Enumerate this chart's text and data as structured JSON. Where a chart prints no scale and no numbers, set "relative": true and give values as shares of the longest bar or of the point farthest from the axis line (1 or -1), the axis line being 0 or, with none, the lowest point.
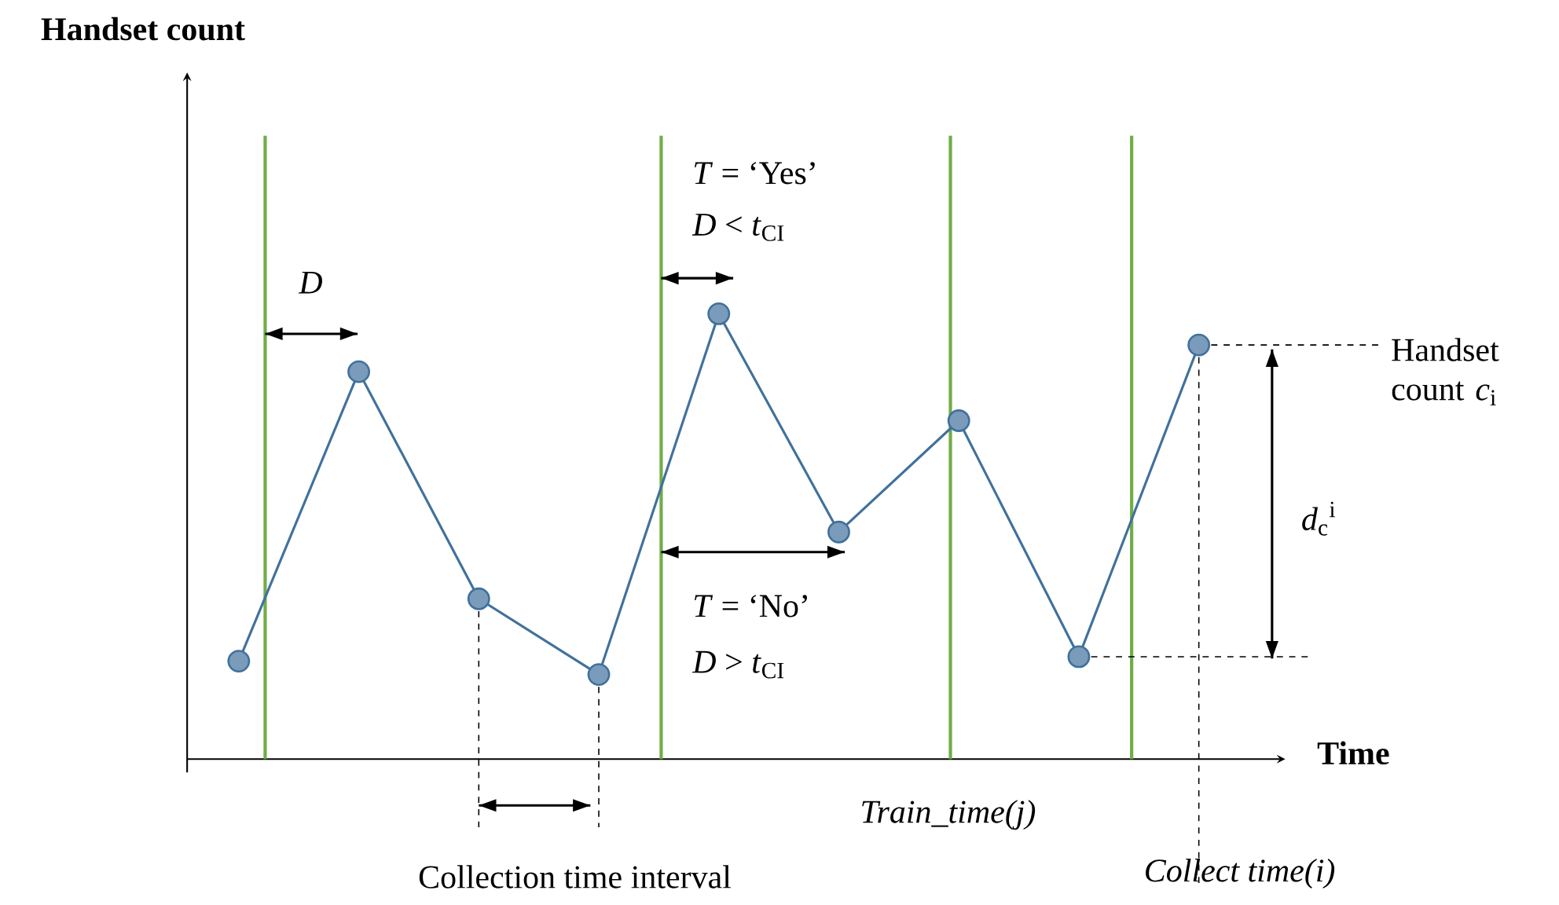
{
  "chart_data": {
    "type": "line",
    "relative": true,
    "xlabel": "Time",
    "categories": [
      null,
      null,
      null,
      null,
      null,
      null,
      null,
      null,
      null
    ],
    "series": [
      {
        "color": "#41719c",
        "values": [
          0.22,
          0.87,
          0.36,
          0.19,
          1,
          0.51,
          0.76,
          0.23,
          0.93
        ]
      }
    ],
    "marker": "circle",
    "line_style": "solid",
    "ref_lines": [
      {
        "axis": "y",
        "value": 0.23,
        "color": "#000000",
        "line_style": "dashed"
      }
    ],
    "annotations": [
      "*D*",
      "*T* = ‘Yes’",
      "*D* < *t*$_{CI}$",
      "*T* = ‘No’",
      "*D* > *t*$_{CI}$",
      "Handset count *c*$_{i}$",
      "*d*$_{c}$$^{i}$",
      "Collection time interval",
      "Train_time(j)",
      "Collect time(i)",
      "**Handset count**"
    ]
  }
}
